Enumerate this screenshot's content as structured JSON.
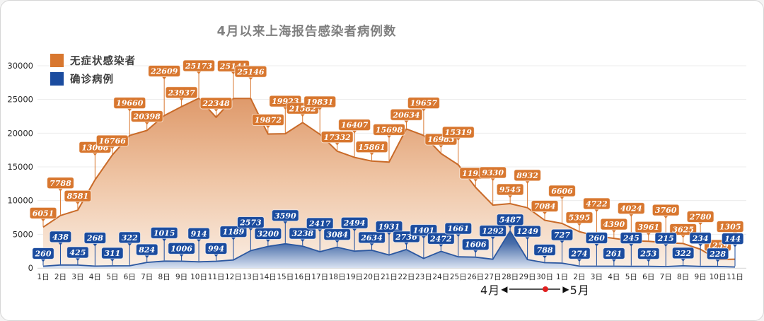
{
  "title": "4月以来上海报告感染者病例数",
  "legend": [
    {
      "label": "无症状感染者",
      "color": "#D8772F"
    },
    {
      "label": "确诊病例",
      "color": "#1B4C9F"
    }
  ],
  "footer": {
    "left_label": "4月",
    "right_label": "5月"
  },
  "colors": {
    "asymptomatic_bubble": "#D8772F",
    "asymptomatic_line": "#C96A28",
    "confirmed_bubble": "#1B4C9F",
    "confirmed_line": "#2B57A0",
    "red_dot": "#E01F1F",
    "grid": "#ECECEC",
    "axis_text": "#2a2a2a"
  },
  "chart_data": {
    "type": "area",
    "title": "4月以来上海报告感染者病例数",
    "xlabel": "",
    "ylabel": "",
    "ylim": [
      0,
      30000
    ],
    "grid": true,
    "legend_position": "top-left",
    "y_ticks": [
      0,
      5000,
      10000,
      15000,
      20000,
      25000,
      30000
    ],
    "categories": [
      "1日",
      "2日",
      "3日",
      "4日",
      "5日",
      "6日",
      "7日",
      "8日",
      "9日",
      "10日",
      "11日",
      "12日",
      "13日",
      "14日",
      "15日",
      "16日",
      "17日",
      "18日",
      "19日",
      "20日",
      "21日",
      "22日",
      "23日",
      "24日",
      "25日",
      "26日",
      "27日",
      "28日",
      "29日",
      "30日",
      "1日",
      "2日",
      "3日",
      "4日",
      "5日",
      "6日",
      "7日",
      "8日",
      "9日",
      "10日",
      "11日"
    ],
    "months": [
      {
        "label": "4月",
        "days": 30
      },
      {
        "label": "5月",
        "days": 11
      }
    ],
    "series": [
      {
        "name": "无症状感染者",
        "color": "#D8772F",
        "values": [
          6051,
          7788,
          8581,
          13068,
          16766,
          19660,
          20398,
          22609,
          23937,
          25173,
          22348,
          25141,
          25146,
          19872,
          19923,
          21582,
          19831,
          17332,
          16407,
          15861,
          15698,
          20634,
          19657,
          16983,
          15319,
          11956,
          9330,
          9545,
          8932,
          7084,
          6606,
          5395,
          4722,
          4390,
          4024,
          3961,
          3760,
          3625,
          2780,
          1259,
          1305
        ]
      },
      {
        "name": "确诊病例",
        "color": "#1B4C9F",
        "values": [
          260,
          438,
          425,
          268,
          311,
          322,
          824,
          1015,
          1006,
          914,
          994,
          1189,
          2573,
          3200,
          3590,
          3238,
          2417,
          3084,
          2494,
          2634,
          1931,
          2736,
          1401,
          2472,
          1661,
          1606,
          1292,
          5487,
          1249,
          788,
          727,
          274,
          260,
          261,
          245,
          253,
          215,
          322,
          234,
          228,
          144
        ]
      }
    ]
  }
}
